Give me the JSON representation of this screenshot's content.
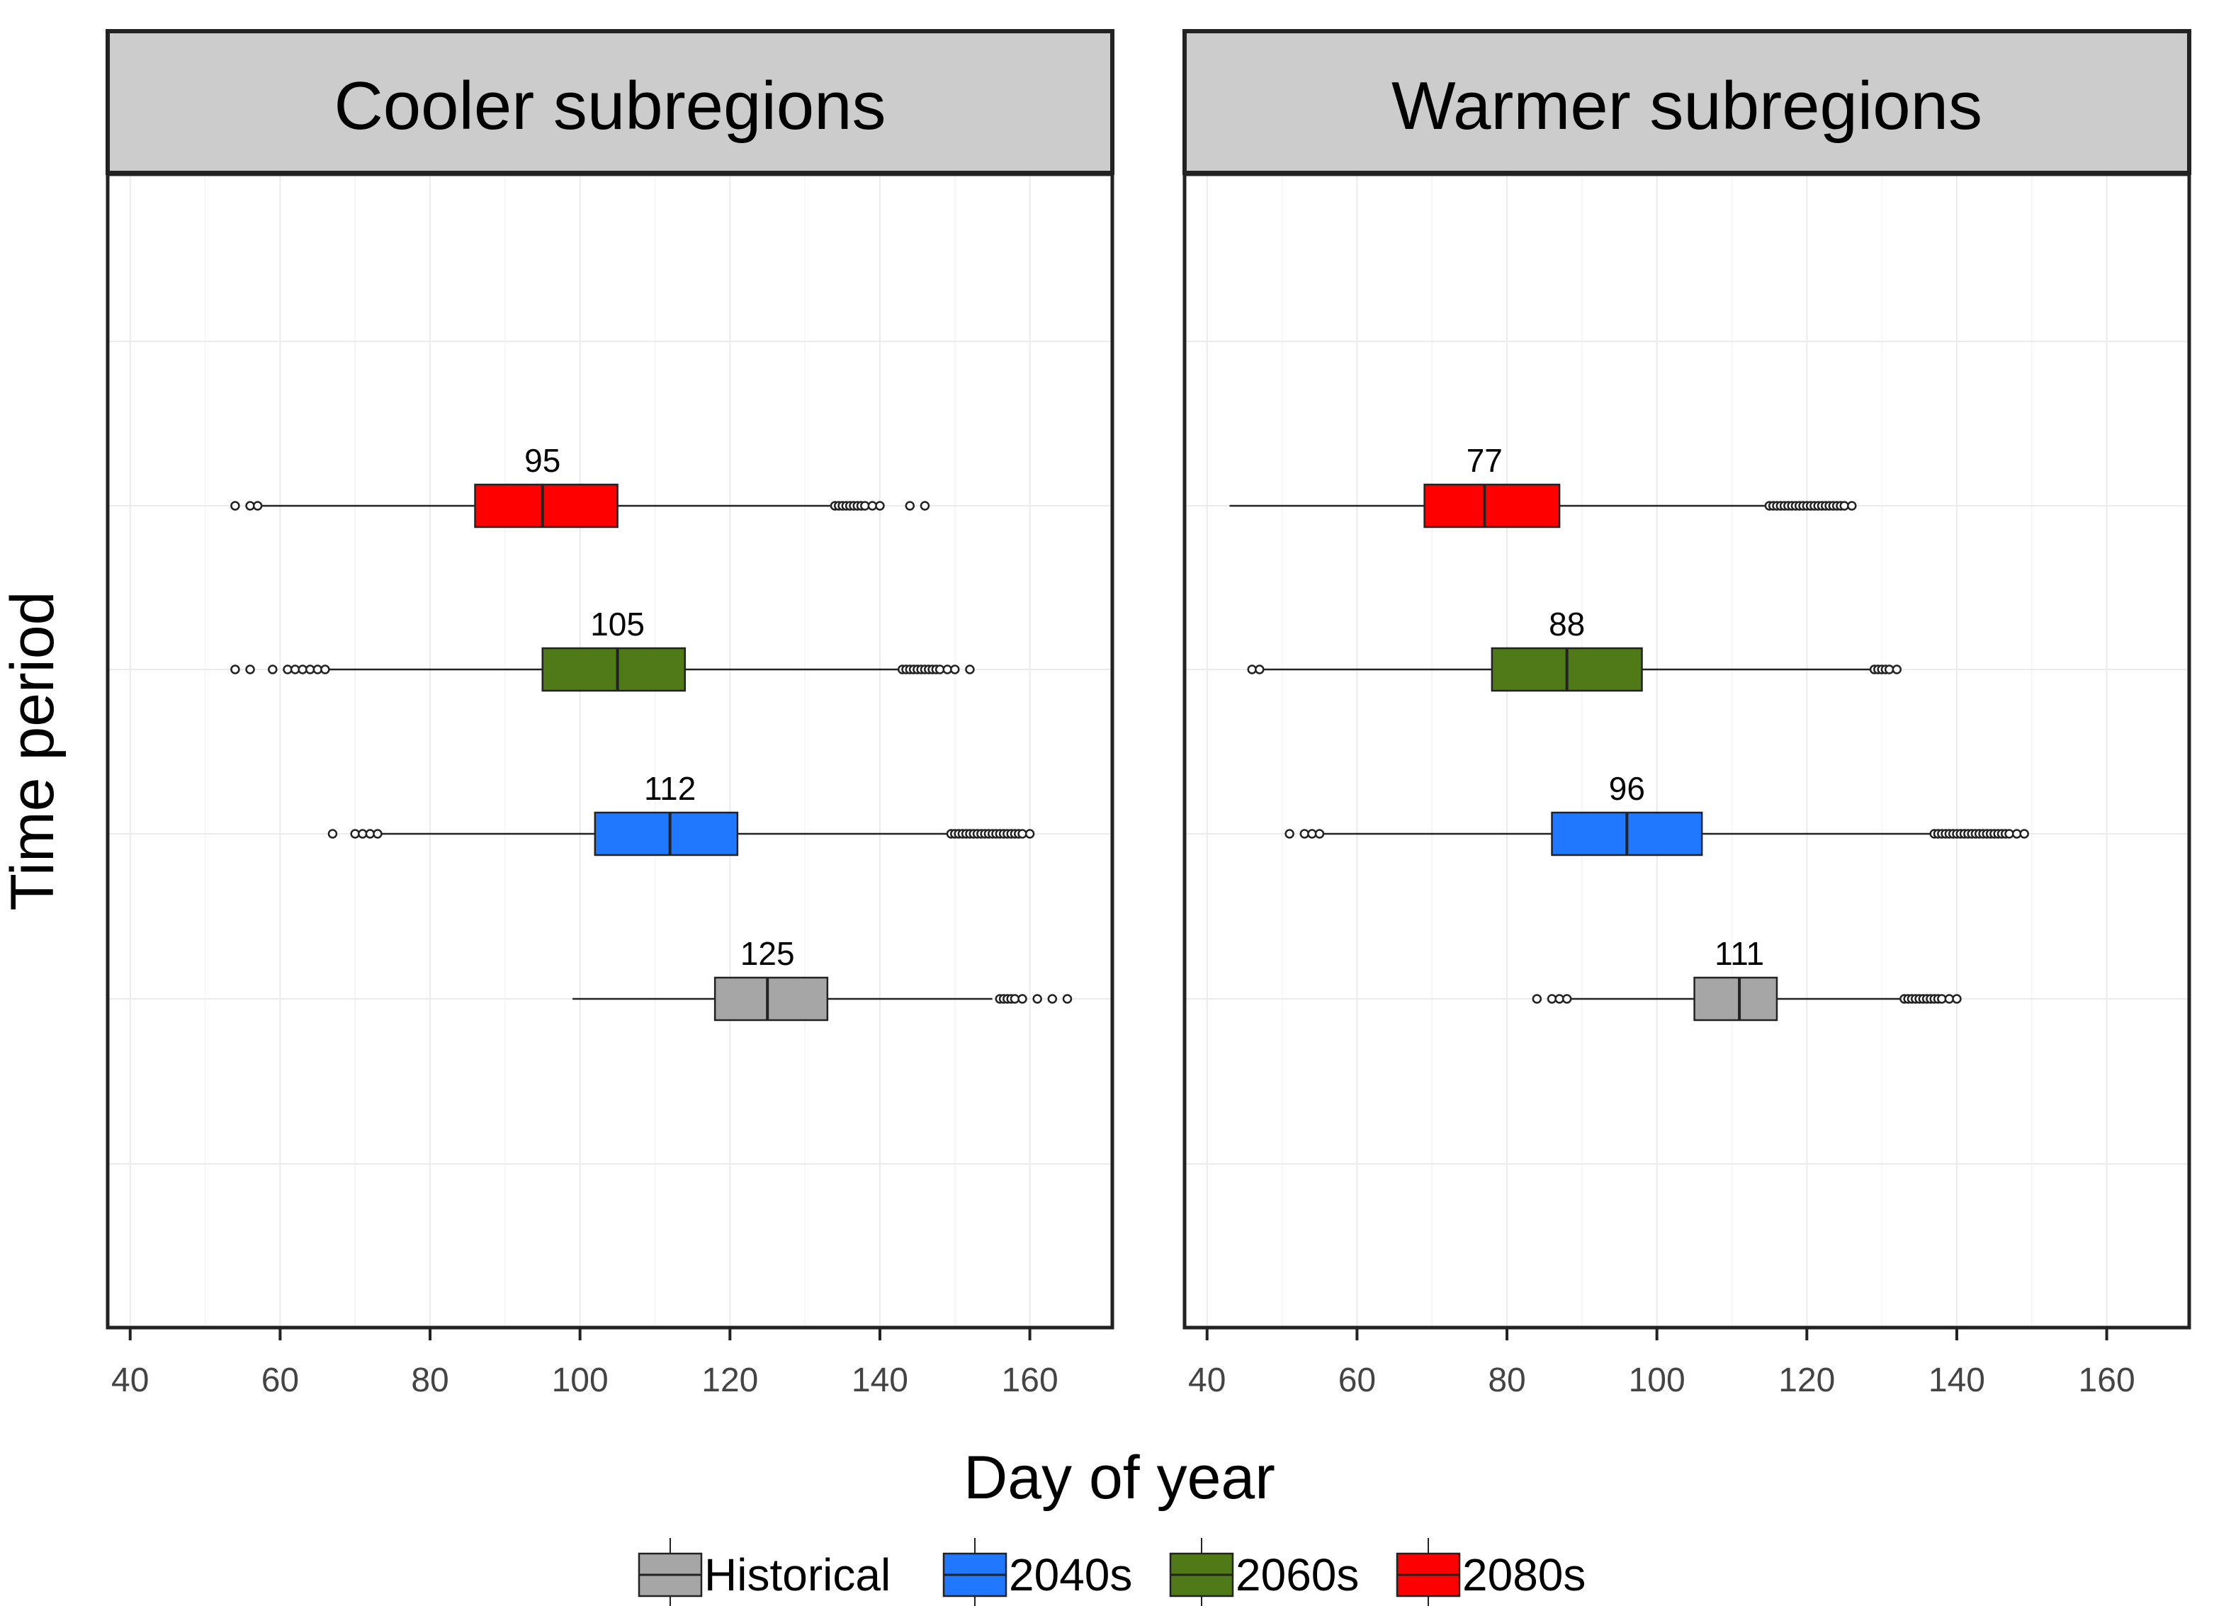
{
  "chart_data": {
    "type": "boxplot",
    "orientation": "horizontal",
    "xlabel": "Day of year",
    "ylabel": "Time period",
    "xlim": [
      37,
      171
    ],
    "x_ticks": [
      40,
      60,
      80,
      100,
      120,
      140,
      160
    ],
    "grid": true,
    "legend_position": "bottom",
    "groups": [
      "Historical",
      "2040s",
      "2060s",
      "2080s"
    ],
    "colors": {
      "Historical": "#a6a6a6",
      "2040s": "#1f78ff",
      "2060s": "#4f7a17",
      "2080s": "#ff0000"
    },
    "panels": [
      {
        "title": "Cooler subregions",
        "boxes": [
          {
            "group": "Historical",
            "q1": 118,
            "median": 125,
            "q3": 133,
            "whisker_low": 99,
            "whisker_high": 155,
            "label": "125",
            "outliers": [
              156,
              156.5,
              157,
              157.5,
              158,
              159,
              161,
              163,
              165
            ]
          },
          {
            "group": "2040s",
            "q1": 102,
            "median": 112,
            "q3": 121,
            "whisker_low": 73.5,
            "whisker_high": 149,
            "label": "112",
            "outliers": [
              67,
              70,
              71,
              72,
              73,
              149.5,
              150,
              150.5,
              151,
              151.5,
              152,
              152.5,
              153,
              153.5,
              154,
              154.5,
              155,
              155.5,
              156,
              156.5,
              157,
              157.5,
              158,
              158.5,
              159,
              160
            ]
          },
          {
            "group": "2060s",
            "q1": 95,
            "median": 105,
            "q3": 114,
            "whisker_low": 66.5,
            "whisker_high": 142.5,
            "label": "105",
            "outliers": [
              54,
              56,
              59,
              61,
              62,
              63,
              64,
              65,
              66,
              143,
              143.5,
              144,
              144.5,
              145,
              145.5,
              146,
              146.5,
              147,
              147.5,
              148,
              149,
              150,
              152
            ]
          },
          {
            "group": "2080s",
            "q1": 86,
            "median": 95,
            "q3": 105,
            "whisker_low": 57.5,
            "whisker_high": 133.5,
            "label": "95",
            "outliers": [
              54,
              56,
              57,
              134,
              134.5,
              135,
              135.5,
              136,
              136.5,
              137,
              137.5,
              138,
              139,
              140,
              144,
              146
            ]
          }
        ]
      },
      {
        "title": "Warmer subregions",
        "boxes": [
          {
            "group": "Historical",
            "q1": 105,
            "median": 111,
            "q3": 116,
            "whisker_low": 88.5,
            "whisker_high": 132.5,
            "label": "111",
            "outliers": [
              84,
              86,
              87,
              88,
              133,
              133.5,
              134,
              134.5,
              135,
              135.5,
              136,
              136.5,
              137,
              137.5,
              138,
              139,
              140
            ]
          },
          {
            "group": "2040s",
            "q1": 86,
            "median": 96,
            "q3": 106,
            "whisker_low": 55.5,
            "whisker_high": 136.5,
            "label": "96",
            "outliers": [
              51,
              53,
              54,
              55,
              137,
              137.5,
              138,
              138.5,
              139,
              139.5,
              140,
              140.5,
              141,
              141.5,
              142,
              142.5,
              143,
              143.5,
              144,
              144.5,
              145,
              145.5,
              146,
              146.5,
              147,
              148,
              149
            ]
          },
          {
            "group": "2060s",
            "q1": 78,
            "median": 88,
            "q3": 98,
            "whisker_low": 47.5,
            "whisker_high": 128.5,
            "label": "88",
            "outliers": [
              46,
              47,
              129,
              129.5,
              130,
              130.5,
              131,
              132
            ]
          },
          {
            "group": "2080s",
            "q1": 69,
            "median": 77,
            "q3": 87,
            "whisker_low": 43,
            "whisker_high": 114.5,
            "label": "77",
            "outliers": [
              115,
              115.5,
              116,
              116.5,
              117,
              117.5,
              118,
              118.5,
              119,
              119.5,
              120,
              120.5,
              121,
              121.5,
              122,
              122.5,
              123,
              123.5,
              124,
              124.5,
              125,
              126
            ]
          }
        ]
      }
    ]
  }
}
